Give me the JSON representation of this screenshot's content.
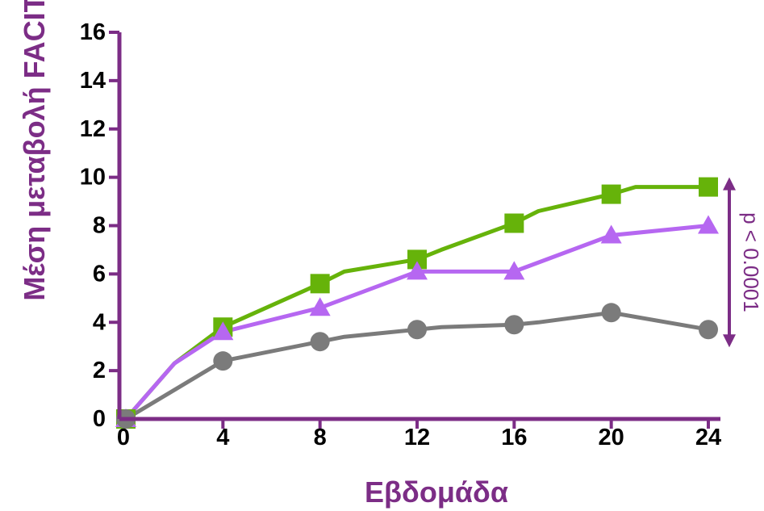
{
  "chart_data": {
    "type": "line",
    "xlabel": "Εβδομάδα",
    "ylabel": "Μέση μεταβολή  FACIT",
    "xlim": [
      0,
      24
    ],
    "ylim": [
      0,
      16
    ],
    "x_ticks": [
      "0",
      "4",
      "8",
      "12",
      "16",
      "20",
      "24"
    ],
    "y_ticks": [
      "0",
      "2",
      "4",
      "6",
      "8",
      "10",
      "12",
      "14",
      "16"
    ],
    "annotation": "p < 0.0001",
    "grid": false,
    "series": [
      {
        "marker": "square",
        "color": "#66b30a",
        "line": [
          [
            0,
            0
          ],
          [
            2,
            2.3
          ],
          [
            4,
            3.8
          ],
          [
            8,
            5.6
          ],
          [
            9,
            6.1
          ],
          [
            12,
            6.6
          ],
          [
            13,
            7.0
          ],
          [
            16,
            8.1
          ],
          [
            17,
            8.6
          ],
          [
            20,
            9.3
          ],
          [
            21,
            9.6
          ],
          [
            24,
            9.6
          ]
        ],
        "markers": [
          [
            0,
            0
          ],
          [
            4,
            3.8
          ],
          [
            8,
            5.6
          ],
          [
            12,
            6.6
          ],
          [
            16,
            8.1
          ],
          [
            20,
            9.3
          ],
          [
            24,
            9.6
          ]
        ]
      },
      {
        "marker": "triangle",
        "color": "#b667f1",
        "line": [
          [
            0,
            0
          ],
          [
            2,
            2.3
          ],
          [
            4,
            3.6
          ],
          [
            8,
            4.6
          ],
          [
            12,
            6.1
          ],
          [
            16,
            6.1
          ],
          [
            20,
            7.6
          ],
          [
            24,
            8.0
          ]
        ],
        "markers": [
          [
            0,
            0
          ],
          [
            4,
            3.6
          ],
          [
            8,
            4.6
          ],
          [
            12,
            6.1
          ],
          [
            16,
            6.1
          ],
          [
            20,
            7.6
          ],
          [
            24,
            8.0
          ]
        ]
      },
      {
        "marker": "circle",
        "color": "#7b7b7b",
        "line": [
          [
            0,
            0
          ],
          [
            4,
            2.4
          ],
          [
            8,
            3.2
          ],
          [
            9,
            3.4
          ],
          [
            12,
            3.7
          ],
          [
            13,
            3.8
          ],
          [
            16,
            3.9
          ],
          [
            17,
            4.0
          ],
          [
            20,
            4.4
          ],
          [
            24,
            3.7
          ]
        ],
        "markers": [
          [
            0,
            0
          ],
          [
            4,
            2.4
          ],
          [
            8,
            3.2
          ],
          [
            12,
            3.7
          ],
          [
            16,
            3.9
          ],
          [
            20,
            4.4
          ],
          [
            24,
            3.7
          ]
        ]
      }
    ]
  },
  "colors": {
    "axis": "#7c2d86",
    "tick_text": "#000000"
  }
}
